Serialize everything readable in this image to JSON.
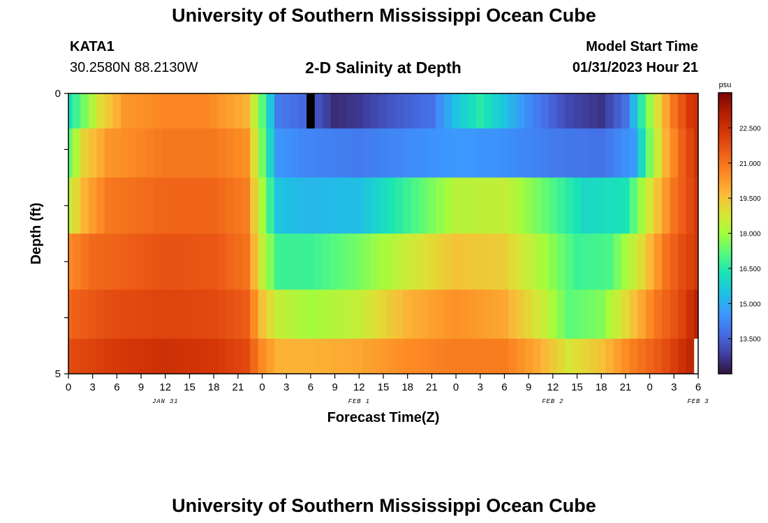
{
  "page": {
    "title": "University of Southern Mississippi Ocean Cube",
    "station_name": "KATA1",
    "station_coords": "30.2580N  88.2130W",
    "plot_title": "2-D Salinity at Depth",
    "model_start_label": "Model Start Time",
    "model_start_value": "01/31/2023 Hour 21",
    "footer_title": "University of Southern Mississippi Ocean Cube"
  },
  "chart_data": {
    "type": "heatmap",
    "title": "2-D Salinity at Depth",
    "xlabel": "Forecast Time(Z)",
    "ylabel": "Depth (ft)",
    "x_tick_labels": [
      "0",
      "3",
      "6",
      "9",
      "12",
      "15",
      "18",
      "21",
      "0",
      "3",
      "6",
      "9",
      "12",
      "15",
      "18",
      "21",
      "0",
      "3",
      "6",
      "9",
      "12",
      "15",
      "18",
      "21",
      "0",
      "3",
      "6"
    ],
    "date_labels": [
      {
        "label": "JAN 31",
        "hour_index": 12
      },
      {
        "label": "FEB 1",
        "hour_index": 36
      },
      {
        "label": "FEB 2",
        "hour_index": 60
      },
      {
        "label": "FEB 3",
        "hour_index": 78
      }
    ],
    "x_range_hours": [
      0,
      78
    ],
    "y_tick_labels": [
      "0",
      "5"
    ],
    "y_range_ft": [
      0,
      5
    ],
    "depth_layers_ft": [
      0.25,
      1.0,
      2.0,
      3.0,
      4.0,
      4.75
    ],
    "colorbar": {
      "unit": "psu",
      "range": [
        12.0,
        24.0
      ],
      "tick_labels": [
        "22.500",
        "21.000",
        "19.500",
        "18.000",
        "16.500",
        "15.000",
        "13.500"
      ],
      "tick_values": [
        22.5,
        21.0,
        19.5,
        18.0,
        16.5,
        15.0,
        13.5
      ]
    },
    "salinity_keypoints": [
      {
        "layer": 0,
        "points": [
          [
            0,
            16.2
          ],
          [
            2,
            17.5
          ],
          [
            4,
            19.0
          ],
          [
            7,
            20.3
          ],
          [
            12,
            20.6
          ],
          [
            17,
            20.6
          ],
          [
            22,
            19.8
          ],
          [
            24,
            17.2
          ],
          [
            26,
            14.0
          ],
          [
            30,
            13.5
          ],
          [
            33,
            12.5
          ],
          [
            36,
            12.7
          ],
          [
            40,
            13.3
          ],
          [
            45,
            13.8
          ],
          [
            48,
            15.5
          ],
          [
            51,
            16.5
          ],
          [
            54,
            15.5
          ],
          [
            57,
            14.3
          ],
          [
            62,
            13.0
          ],
          [
            66,
            12.6
          ],
          [
            69,
            13.8
          ],
          [
            71,
            16.6
          ],
          [
            73,
            19.0
          ],
          [
            75,
            21.0
          ],
          [
            77,
            22.3
          ],
          [
            78,
            22.5
          ]
        ]
      },
      {
        "layer": 1,
        "points": [
          [
            0,
            17.3
          ],
          [
            2,
            19.2
          ],
          [
            5,
            20.3
          ],
          [
            12,
            20.9
          ],
          [
            18,
            20.9
          ],
          [
            22,
            20.4
          ],
          [
            24,
            17.5
          ],
          [
            26,
            14.5
          ],
          [
            30,
            14.2
          ],
          [
            36,
            14.0
          ],
          [
            42,
            14.3
          ],
          [
            48,
            14.6
          ],
          [
            54,
            14.4
          ],
          [
            60,
            14.0
          ],
          [
            66,
            13.8
          ],
          [
            70,
            14.6
          ],
          [
            72,
            17.5
          ],
          [
            74,
            19.8
          ],
          [
            76,
            21.4
          ],
          [
            78,
            22.5
          ]
        ]
      },
      {
        "layer": 2,
        "points": [
          [
            0,
            18.5
          ],
          [
            2,
            19.8
          ],
          [
            5,
            20.9
          ],
          [
            12,
            21.3
          ],
          [
            18,
            21.3
          ],
          [
            22,
            20.8
          ],
          [
            24,
            18.0
          ],
          [
            26,
            15.5
          ],
          [
            30,
            15.2
          ],
          [
            36,
            15.4
          ],
          [
            42,
            16.8
          ],
          [
            48,
            18.3
          ],
          [
            54,
            18.5
          ],
          [
            59,
            17.3
          ],
          [
            64,
            16.0
          ],
          [
            69,
            16.3
          ],
          [
            72,
            18.8
          ],
          [
            75,
            21.0
          ],
          [
            78,
            22.3
          ]
        ]
      },
      {
        "layer": 3,
        "points": [
          [
            0,
            20.5
          ],
          [
            3,
            21.2
          ],
          [
            12,
            21.7
          ],
          [
            18,
            21.6
          ],
          [
            22,
            21.0
          ],
          [
            24,
            18.5
          ],
          [
            26,
            16.8
          ],
          [
            30,
            16.8
          ],
          [
            36,
            17.5
          ],
          [
            42,
            18.6
          ],
          [
            48,
            19.5
          ],
          [
            54,
            19.3
          ],
          [
            59,
            18.0
          ],
          [
            63,
            16.8
          ],
          [
            67,
            17.0
          ],
          [
            71,
            19.0
          ],
          [
            74,
            21.0
          ],
          [
            76,
            21.8
          ],
          [
            78,
            22.3
          ]
        ]
      },
      {
        "layer": 4,
        "points": [
          [
            0,
            21.3
          ],
          [
            5,
            21.8
          ],
          [
            12,
            22.0
          ],
          [
            18,
            21.9
          ],
          [
            22,
            21.5
          ],
          [
            24,
            19.5
          ],
          [
            26,
            18.5
          ],
          [
            30,
            18.0
          ],
          [
            36,
            18.5
          ],
          [
            42,
            19.8
          ],
          [
            48,
            20.4
          ],
          [
            54,
            20.0
          ],
          [
            59,
            18.5
          ],
          [
            62,
            17.2
          ],
          [
            66,
            17.6
          ],
          [
            70,
            19.5
          ],
          [
            73,
            21.0
          ],
          [
            76,
            22.0
          ],
          [
            78,
            23.0
          ]
        ]
      },
      {
        "layer": 5,
        "points": [
          [
            0,
            21.8
          ],
          [
            5,
            22.2
          ],
          [
            12,
            22.5
          ],
          [
            18,
            22.3
          ],
          [
            22,
            21.9
          ],
          [
            24,
            20.5
          ],
          [
            26,
            19.8
          ],
          [
            30,
            19.8
          ],
          [
            36,
            20.0
          ],
          [
            42,
            20.5
          ],
          [
            48,
            20.8
          ],
          [
            54,
            20.8
          ],
          [
            58,
            20.0
          ],
          [
            62,
            18.8
          ],
          [
            66,
            19.5
          ],
          [
            70,
            20.8
          ],
          [
            74,
            21.8
          ],
          [
            77,
            22.8
          ],
          [
            78,
            23.0
          ]
        ]
      }
    ],
    "missing_cells": [
      {
        "layer": 0,
        "hour": 30,
        "color": "#000000"
      },
      {
        "layer": 5,
        "hour": 78,
        "color": "#ffffff"
      }
    ]
  }
}
